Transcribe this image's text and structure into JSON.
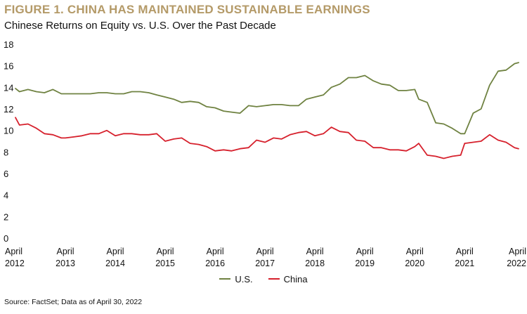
{
  "title": "FIGURE 1. CHINA HAS MAINTAINED SUSTAINABLE EARNINGS",
  "subtitle": "Chinese Returns on Equity vs. U.S. Over the Past Decade",
  "source": "Source: FactSet; Data as of April 30, 2022",
  "colors": {
    "title": "#b49a68",
    "us": "#6f8241",
    "china": "#d6202c"
  },
  "chart_data": {
    "type": "line",
    "title": "Chinese Returns on Equity vs. U.S. Over the Past Decade",
    "xlabel": "",
    "ylabel": "",
    "xlim": [
      2012.25,
      2022.33
    ],
    "ylim": [
      0,
      18
    ],
    "y_ticks": [
      "0",
      "2",
      "4",
      "6",
      "8",
      "10",
      "12",
      "14",
      "16",
      "18"
    ],
    "x_ticks": [
      {
        "month": "April",
        "year": "2012"
      },
      {
        "month": "April",
        "year": "2013"
      },
      {
        "month": "April",
        "year": "2014"
      },
      {
        "month": "April",
        "year": "2015"
      },
      {
        "month": "April",
        "year": "2016"
      },
      {
        "month": "April",
        "year": "2017"
      },
      {
        "month": "April",
        "year": "2018"
      },
      {
        "month": "April",
        "year": "2019"
      },
      {
        "month": "April",
        "year": "2020"
      },
      {
        "month": "April",
        "year": "2021"
      },
      {
        "month": "April",
        "year": "2022"
      }
    ],
    "grid": false,
    "legend": "bottom-center",
    "series": [
      {
        "name": "U.S.",
        "x": [
          2012.25,
          2012.33,
          2012.5,
          2012.67,
          2012.83,
          2013.0,
          2013.17,
          2013.25,
          2013.42,
          2013.58,
          2013.75,
          2013.92,
          2014.08,
          2014.25,
          2014.42,
          2014.58,
          2014.75,
          2014.92,
          2015.08,
          2015.25,
          2015.42,
          2015.58,
          2015.75,
          2015.92,
          2016.08,
          2016.25,
          2016.42,
          2016.58,
          2016.75,
          2016.92,
          2017.08,
          2017.25,
          2017.42,
          2017.58,
          2017.75,
          2017.92,
          2018.08,
          2018.25,
          2018.42,
          2018.58,
          2018.75,
          2018.92,
          2019.08,
          2019.25,
          2019.42,
          2019.58,
          2019.75,
          2019.92,
          2020.08,
          2020.25,
          2020.33,
          2020.5,
          2020.67,
          2020.83,
          2021.0,
          2021.17,
          2021.25,
          2021.42,
          2021.58,
          2021.75,
          2021.92,
          2022.08,
          2022.25,
          2022.33
        ],
        "values": [
          13.9,
          13.6,
          13.8,
          13.6,
          13.5,
          13.8,
          13.4,
          13.4,
          13.4,
          13.4,
          13.4,
          13.5,
          13.5,
          13.4,
          13.4,
          13.6,
          13.6,
          13.5,
          13.3,
          13.1,
          12.9,
          12.6,
          12.7,
          12.6,
          12.2,
          12.1,
          11.8,
          11.7,
          11.6,
          12.3,
          12.2,
          12.3,
          12.4,
          12.4,
          12.3,
          12.3,
          12.9,
          13.1,
          13.3,
          14.0,
          14.3,
          14.9,
          14.9,
          15.1,
          14.6,
          14.3,
          14.2,
          13.7,
          13.7,
          13.8,
          12.9,
          12.6,
          10.7,
          10.6,
          10.2,
          9.7,
          9.7,
          11.6,
          12.0,
          14.2,
          15.5,
          15.6,
          16.2,
          16.3
        ]
      },
      {
        "name": "China",
        "x": [
          2012.25,
          2012.33,
          2012.5,
          2012.67,
          2012.83,
          2013.0,
          2013.17,
          2013.25,
          2013.42,
          2013.58,
          2013.75,
          2013.92,
          2014.08,
          2014.25,
          2014.42,
          2014.58,
          2014.75,
          2014.92,
          2015.08,
          2015.25,
          2015.42,
          2015.58,
          2015.75,
          2015.92,
          2016.08,
          2016.25,
          2016.42,
          2016.58,
          2016.75,
          2016.92,
          2017.08,
          2017.25,
          2017.42,
          2017.58,
          2017.75,
          2017.92,
          2018.08,
          2018.25,
          2018.42,
          2018.58,
          2018.75,
          2018.92,
          2019.08,
          2019.25,
          2019.42,
          2019.58,
          2019.75,
          2019.92,
          2020.08,
          2020.25,
          2020.33,
          2020.5,
          2020.67,
          2020.83,
          2021.0,
          2021.17,
          2021.25,
          2021.42,
          2021.58,
          2021.75,
          2021.92,
          2022.08,
          2022.25,
          2022.33
        ],
        "values": [
          11.2,
          10.5,
          10.6,
          10.2,
          9.7,
          9.6,
          9.3,
          9.3,
          9.4,
          9.5,
          9.7,
          9.7,
          10.0,
          9.5,
          9.7,
          9.7,
          9.6,
          9.6,
          9.7,
          9.0,
          9.2,
          9.3,
          8.8,
          8.7,
          8.5,
          8.1,
          8.2,
          8.1,
          8.3,
          8.4,
          9.1,
          8.9,
          9.3,
          9.2,
          9.6,
          9.8,
          9.9,
          9.5,
          9.7,
          10.3,
          9.9,
          9.8,
          9.1,
          9.0,
          8.4,
          8.4,
          8.2,
          8.2,
          8.1,
          8.5,
          8.8,
          7.7,
          7.6,
          7.4,
          7.6,
          7.7,
          8.8,
          8.9,
          9.0,
          9.6,
          9.1,
          8.9,
          8.4,
          8.3
        ]
      }
    ]
  }
}
